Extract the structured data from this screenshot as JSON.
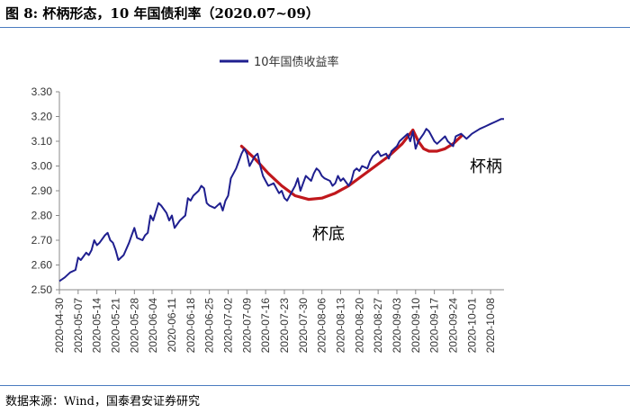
{
  "figure": {
    "title": "图 8:  杯柄形态，10 年国债利率（2020.07~09）",
    "source": "数据来源：Wind，国泰君安证券研究"
  },
  "chart_data": {
    "type": "line",
    "legend": {
      "entry": "10年国债收益率",
      "placement": "top-center"
    },
    "ylim": [
      2.5,
      3.3
    ],
    "yticks": [
      "3.30",
      "3.20",
      "3.10",
      "3.00",
      "2.90",
      "2.80",
      "2.70",
      "2.60",
      "2.50"
    ],
    "grid": false,
    "xlim": [
      "2020-04-30",
      "2020-10-13"
    ],
    "xticks": [
      "2020-04-30",
      "2020-05-07",
      "2020-05-14",
      "2020-05-21",
      "2020-05-28",
      "2020-06-04",
      "2020-06-11",
      "2020-06-18",
      "2020-06-25",
      "2020-07-02",
      "2020-07-09",
      "2020-07-16",
      "2020-07-23",
      "2020-07-30",
      "2020-08-06",
      "2020-08-13",
      "2020-08-20",
      "2020-08-27",
      "2020-09-03",
      "2020-09-10",
      "2020-09-17",
      "2020-09-24",
      "2020-10-01",
      "2020-10-08"
    ],
    "series": [
      {
        "name": "10年国债收益率",
        "color": "#1f1f8f",
        "x": [
          "2020-04-30",
          "2020-05-02",
          "2020-05-04",
          "2020-05-06",
          "2020-05-07",
          "2020-05-08",
          "2020-05-10",
          "2020-05-11",
          "2020-05-12",
          "2020-05-13",
          "2020-05-14",
          "2020-05-15",
          "2020-05-17",
          "2020-05-18",
          "2020-05-19",
          "2020-05-20",
          "2020-05-21",
          "2020-05-22",
          "2020-05-24",
          "2020-05-26",
          "2020-05-27",
          "2020-05-28",
          "2020-05-29",
          "2020-05-31",
          "2020-06-01",
          "2020-06-02",
          "2020-06-03",
          "2020-06-04",
          "2020-06-06",
          "2020-06-07",
          "2020-06-09",
          "2020-06-10",
          "2020-06-11",
          "2020-06-12",
          "2020-06-14",
          "2020-06-16",
          "2020-06-17",
          "2020-06-18",
          "2020-06-19",
          "2020-06-21",
          "2020-06-22",
          "2020-06-23",
          "2020-06-24",
          "2020-06-25",
          "2020-06-27",
          "2020-06-29",
          "2020-06-30",
          "2020-07-01",
          "2020-07-02",
          "2020-07-03",
          "2020-07-05",
          "2020-07-06",
          "2020-07-07",
          "2020-07-08",
          "2020-07-09",
          "2020-07-10",
          "2020-07-12",
          "2020-07-13",
          "2020-07-14",
          "2020-07-15",
          "2020-07-16",
          "2020-07-17",
          "2020-07-19",
          "2020-07-20",
          "2020-07-21",
          "2020-07-22",
          "2020-07-23",
          "2020-07-24",
          "2020-07-26",
          "2020-07-27",
          "2020-07-28",
          "2020-07-29",
          "2020-07-30",
          "2020-07-31",
          "2020-08-02",
          "2020-08-03",
          "2020-08-04",
          "2020-08-05",
          "2020-08-06",
          "2020-08-07",
          "2020-08-09",
          "2020-08-10",
          "2020-08-11",
          "2020-08-12",
          "2020-08-13",
          "2020-08-14",
          "2020-08-16",
          "2020-08-17",
          "2020-08-18",
          "2020-08-19",
          "2020-08-20",
          "2020-08-21",
          "2020-08-23",
          "2020-08-24",
          "2020-08-25",
          "2020-08-26",
          "2020-08-27",
          "2020-08-28",
          "2020-08-30",
          "2020-08-31",
          "2020-09-01",
          "2020-09-02",
          "2020-09-03",
          "2020-09-04",
          "2020-09-06",
          "2020-09-07",
          "2020-09-08",
          "2020-09-09",
          "2020-09-10",
          "2020-09-11",
          "2020-09-13",
          "2020-09-14",
          "2020-09-15",
          "2020-09-16",
          "2020-09-17",
          "2020-09-18",
          "2020-09-20",
          "2020-09-21",
          "2020-09-22",
          "2020-09-23",
          "2020-09-24",
          "2020-09-25",
          "2020-09-27",
          "2020-09-28",
          "2020-09-29",
          "2020-09-30",
          "2020-10-01",
          "2020-10-04",
          "2020-10-06",
          "2020-10-08",
          "2020-10-10",
          "2020-10-12",
          "2020-10-13"
        ],
        "y": [
          2.535,
          2.55,
          2.57,
          2.58,
          2.63,
          2.62,
          2.65,
          2.64,
          2.66,
          2.7,
          2.68,
          2.69,
          2.72,
          2.73,
          2.7,
          2.69,
          2.66,
          2.62,
          2.64,
          2.69,
          2.72,
          2.75,
          2.71,
          2.7,
          2.72,
          2.73,
          2.8,
          2.78,
          2.85,
          2.84,
          2.81,
          2.78,
          2.8,
          2.75,
          2.78,
          2.8,
          2.87,
          2.86,
          2.88,
          2.9,
          2.92,
          2.91,
          2.85,
          2.84,
          2.83,
          2.85,
          2.82,
          2.86,
          2.88,
          2.95,
          2.99,
          3.02,
          3.05,
          3.07,
          3.05,
          3.0,
          3.04,
          3.05,
          3.0,
          2.96,
          2.94,
          2.92,
          2.93,
          2.91,
          2.89,
          2.9,
          2.87,
          2.86,
          2.9,
          2.92,
          2.95,
          2.9,
          2.93,
          2.96,
          2.94,
          2.97,
          2.99,
          2.98,
          2.96,
          2.95,
          2.94,
          2.92,
          2.93,
          2.96,
          2.94,
          2.95,
          2.92,
          2.94,
          2.98,
          2.99,
          2.98,
          3.0,
          2.99,
          3.02,
          3.04,
          3.05,
          3.06,
          3.04,
          3.05,
          3.03,
          3.06,
          3.07,
          3.08,
          3.1,
          3.12,
          3.13,
          3.1,
          3.14,
          3.07,
          3.1,
          3.13,
          3.15,
          3.14,
          3.12,
          3.1,
          3.09,
          3.11,
          3.12,
          3.1,
          3.09,
          3.08,
          3.12,
          3.13,
          3.12,
          3.11,
          3.12,
          3.13,
          3.15,
          3.16,
          3.17,
          3.18,
          3.19,
          3.19
        ]
      }
    ],
    "overlays": [
      {
        "label": "杯底",
        "color": "#c0171c",
        "x": [
          "2020-07-07",
          "2020-07-12",
          "2020-07-17",
          "2020-07-22",
          "2020-07-27",
          "2020-08-01",
          "2020-08-06",
          "2020-08-11",
          "2020-08-16",
          "2020-08-21",
          "2020-08-26",
          "2020-08-31",
          "2020-09-05",
          "2020-09-09"
        ],
        "y": [
          3.08,
          3.03,
          2.97,
          2.92,
          2.88,
          2.865,
          2.87,
          2.89,
          2.92,
          2.96,
          3.0,
          3.04,
          3.09,
          3.145
        ]
      },
      {
        "label": "杯柄",
        "color": "#c0171c",
        "x": [
          "2020-09-09",
          "2020-09-11",
          "2020-09-13",
          "2020-09-15",
          "2020-09-18",
          "2020-09-21",
          "2020-09-24",
          "2020-09-27"
        ],
        "y": [
          3.145,
          3.1,
          3.07,
          3.06,
          3.06,
          3.07,
          3.09,
          3.12
        ]
      }
    ]
  }
}
